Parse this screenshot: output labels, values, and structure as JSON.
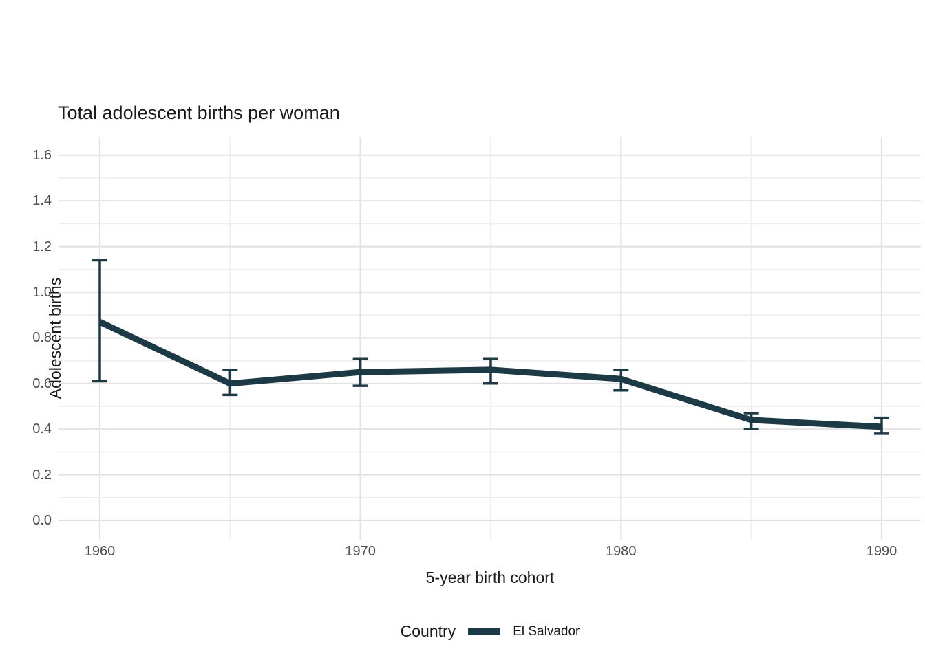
{
  "page": {
    "background": "#ffffff"
  },
  "chart_data": {
    "type": "line",
    "title": "Total adolescent births per woman",
    "xlabel": "5-year birth cohort",
    "ylabel": "Adolescent births",
    "x": [
      1960,
      1965,
      1970,
      1975,
      1980,
      1985,
      1990
    ],
    "series": [
      {
        "name": "El Salvador",
        "values": [
          0.87,
          0.6,
          0.65,
          0.66,
          0.62,
          0.44,
          0.41
        ],
        "error_low": [
          0.61,
          0.55,
          0.59,
          0.6,
          0.57,
          0.4,
          0.38
        ],
        "error_high": [
          1.14,
          0.66,
          0.71,
          0.71,
          0.66,
          0.47,
          0.45
        ],
        "color": "#1c3a45"
      }
    ],
    "x_ticks": [
      "1960",
      "1970",
      "1980",
      "1990"
    ],
    "x_tick_years": [
      1960,
      1970,
      1980,
      1990
    ],
    "minor_grid_years": [
      1965,
      1975,
      1985
    ],
    "y_ticks": [
      "0.0",
      "0.2",
      "0.4",
      "0.6",
      "0.8",
      "1.0",
      "1.2",
      "1.4",
      "1.6"
    ],
    "y_tick_values": [
      0.0,
      0.2,
      0.4,
      0.6,
      0.8,
      1.0,
      1.2,
      1.4,
      1.6
    ],
    "y_minor_values": [
      0.1,
      0.3,
      0.5,
      0.7,
      0.9,
      1.1,
      1.3,
      1.5
    ],
    "ylim": [
      0.0,
      1.6
    ],
    "xlim": [
      1960,
      1990
    ],
    "grid": "on",
    "legend_position": "bottom"
  },
  "legend": {
    "title": "Country",
    "items": [
      {
        "label": "El Salvador",
        "color": "#1c3a45"
      }
    ]
  },
  "colors": {
    "series": "#1c3a45",
    "grid_major": "#e3e3e3",
    "grid_minor": "#eeeeee",
    "tick_label": "#4d4d4d",
    "text": "#1a1a1a",
    "background": "#ffffff"
  }
}
